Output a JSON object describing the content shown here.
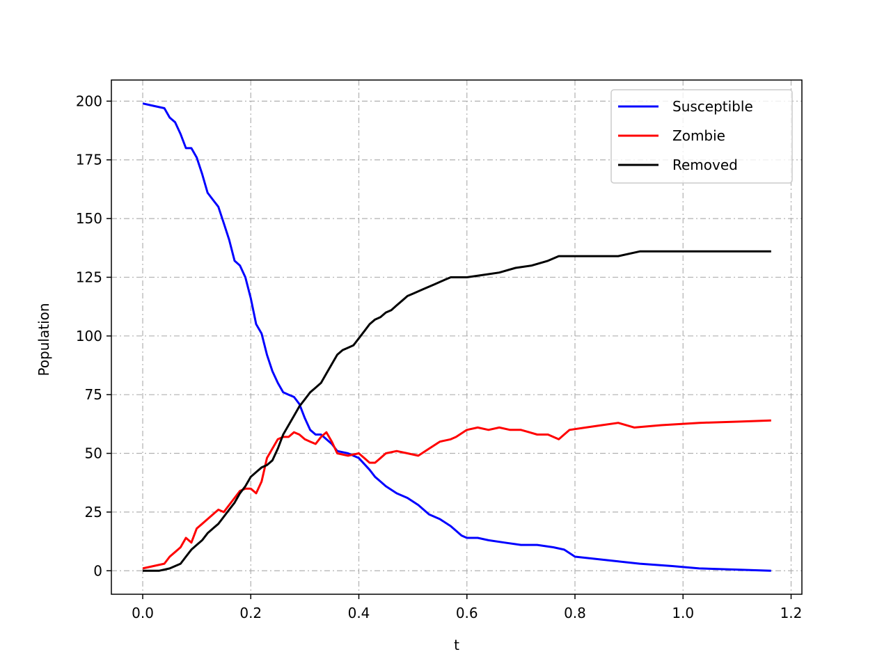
{
  "chart_data": {
    "type": "line",
    "xlabel": "t",
    "ylabel": "Population",
    "xlim": [
      -0.058,
      1.22
    ],
    "ylim": [
      -10,
      209
    ],
    "xticks": [
      "0.0",
      "0.2",
      "0.4",
      "0.6",
      "0.8",
      "1.0",
      "1.2"
    ],
    "yticks": [
      "0",
      "25",
      "50",
      "75",
      "100",
      "125",
      "150",
      "175",
      "200"
    ],
    "grid": true,
    "legend_position": "top-right",
    "series": [
      {
        "name": "Susceptible",
        "color": "#0000ff",
        "x": [
          0.0,
          0.02,
          0.04,
          0.05,
          0.06,
          0.07,
          0.08,
          0.09,
          0.1,
          0.11,
          0.12,
          0.13,
          0.14,
          0.15,
          0.16,
          0.17,
          0.18,
          0.19,
          0.2,
          0.21,
          0.22,
          0.23,
          0.24,
          0.25,
          0.26,
          0.27,
          0.28,
          0.29,
          0.3,
          0.31,
          0.32,
          0.33,
          0.34,
          0.35,
          0.36,
          0.38,
          0.4,
          0.42,
          0.43,
          0.44,
          0.45,
          0.47,
          0.49,
          0.51,
          0.53,
          0.55,
          0.57,
          0.59,
          0.6,
          0.62,
          0.64,
          0.67,
          0.7,
          0.73,
          0.76,
          0.78,
          0.8,
          0.84,
          0.88,
          0.92,
          0.98,
          1.03,
          1.1,
          1.163
        ],
        "y": [
          199,
          198,
          197,
          193,
          191,
          186,
          180,
          180,
          176,
          169,
          161,
          158,
          155,
          148,
          141,
          132,
          130,
          125,
          116,
          105,
          101,
          92,
          85,
          80,
          76,
          75,
          74,
          71,
          65,
          60,
          58,
          58,
          56,
          54,
          51,
          50,
          48,
          43,
          40,
          38,
          36,
          33,
          31,
          28,
          24,
          22,
          19,
          15,
          14,
          14,
          13,
          12,
          11,
          11,
          10,
          9,
          6,
          5,
          4,
          3,
          2,
          1,
          0.5,
          0
        ]
      },
      {
        "name": "Zombie",
        "color": "#ff0000",
        "x": [
          0.0,
          0.02,
          0.04,
          0.05,
          0.06,
          0.07,
          0.08,
          0.09,
          0.1,
          0.11,
          0.12,
          0.13,
          0.14,
          0.15,
          0.16,
          0.17,
          0.18,
          0.19,
          0.2,
          0.21,
          0.22,
          0.23,
          0.24,
          0.25,
          0.26,
          0.27,
          0.28,
          0.29,
          0.3,
          0.31,
          0.32,
          0.33,
          0.34,
          0.35,
          0.36,
          0.38,
          0.4,
          0.41,
          0.42,
          0.43,
          0.44,
          0.45,
          0.47,
          0.49,
          0.51,
          0.53,
          0.55,
          0.57,
          0.58,
          0.6,
          0.62,
          0.64,
          0.66,
          0.68,
          0.7,
          0.73,
          0.75,
          0.77,
          0.79,
          0.82,
          0.85,
          0.88,
          0.91,
          0.96,
          1.03,
          1.1,
          1.163
        ],
        "y": [
          1,
          2,
          3,
          6,
          8,
          10,
          14,
          12,
          18,
          20,
          22,
          24,
          26,
          25,
          28,
          31,
          34,
          35,
          35,
          33,
          38,
          48,
          52,
          56,
          57,
          57,
          59,
          58,
          56,
          55,
          54,
          57,
          59,
          55,
          50,
          49,
          50,
          48,
          46,
          46,
          48,
          50,
          51,
          50,
          49,
          52,
          55,
          56,
          57,
          60,
          61,
          60,
          61,
          60,
          60,
          58,
          58,
          56,
          60,
          61,
          62,
          63,
          61,
          62,
          63,
          63.5,
          64
        ]
      },
      {
        "name": "Removed",
        "color": "#000000",
        "x": [
          0.0,
          0.03,
          0.05,
          0.06,
          0.07,
          0.08,
          0.09,
          0.1,
          0.11,
          0.12,
          0.13,
          0.14,
          0.15,
          0.16,
          0.17,
          0.18,
          0.19,
          0.2,
          0.21,
          0.22,
          0.23,
          0.24,
          0.25,
          0.26,
          0.27,
          0.28,
          0.29,
          0.3,
          0.31,
          0.32,
          0.33,
          0.34,
          0.35,
          0.36,
          0.37,
          0.38,
          0.39,
          0.4,
          0.41,
          0.42,
          0.43,
          0.44,
          0.45,
          0.46,
          0.47,
          0.48,
          0.49,
          0.5,
          0.52,
          0.54,
          0.56,
          0.57,
          0.6,
          0.63,
          0.66,
          0.69,
          0.72,
          0.75,
          0.77,
          0.8,
          0.85,
          0.88,
          0.92,
          0.98,
          1.05,
          1.1,
          1.163
        ],
        "y": [
          0,
          0,
          1,
          2,
          3,
          6,
          9,
          11,
          13,
          16,
          18,
          20,
          23,
          26,
          29,
          33,
          36,
          40,
          42,
          44,
          45,
          47,
          52,
          58,
          62,
          66,
          70,
          73,
          76,
          78,
          80,
          84,
          88,
          92,
          94,
          95,
          96,
          99,
          102,
          105,
          107,
          108,
          110,
          111,
          113,
          115,
          117,
          118,
          120,
          122,
          124,
          125,
          125,
          126,
          127,
          129,
          130,
          132,
          134,
          134,
          134,
          134,
          136,
          136,
          136,
          136,
          136
        ]
      }
    ]
  }
}
